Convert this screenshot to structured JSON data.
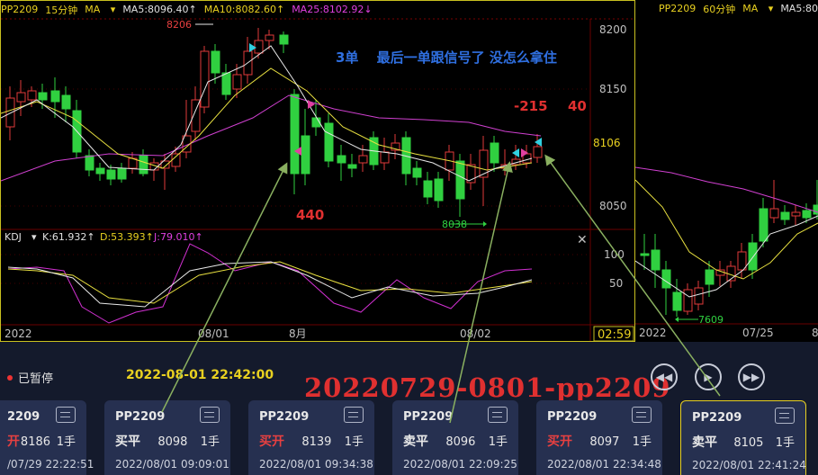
{
  "left": {
    "symbol": "PP2209",
    "period": "15分钟",
    "ma_label": "MA",
    "ma5": "MA5:8096.40↑",
    "ma10": "MA10:8082.60↑",
    "ma25": "MA25:8102.92↓",
    "annotation": "3单　 最后一单跟信号了  没怎么拿住",
    "pnl_a": "-215",
    "pnl_b": "40",
    "pnl_c": "440",
    "high_label": "8206",
    "low_label": "8038",
    "current_price": "8106",
    "y_ticks": [
      "8200",
      "8150",
      "8050"
    ],
    "kdj_label": "KDJ",
    "kdj_k": "K:61.932↑",
    "kdj_d": "D:53.393↑",
    "kdj_j": "J:79.010↑",
    "kdj_ticks": [
      "100",
      "50"
    ],
    "x_labels": [
      "2022",
      "08/01",
      "8月",
      "08/02"
    ],
    "countdown": "02:59"
  },
  "right": {
    "symbol": "PP2209",
    "period": "60分钟",
    "ma_label": "MA",
    "ma5": "MA5:80",
    "low_label": "7609",
    "x_labels": [
      "2022",
      "07/25",
      "8"
    ]
  },
  "bottom": {
    "status": "已暂停",
    "datetime": "2022-08-01 22:42:00",
    "overlay": "20220729-0801-pp2209",
    "cards": [
      {
        "symbol": "2209",
        "action": "开",
        "action_type": "open",
        "price": "8186",
        "qty": "1手",
        "time": "/07/29 22:22:51"
      },
      {
        "symbol": "PP2209",
        "action": "买平",
        "action_type": "close",
        "price": "8098",
        "qty": "1手",
        "time": "2022/08/01 09:09:01"
      },
      {
        "symbol": "PP2209",
        "action": "买开",
        "action_type": "open",
        "price": "8139",
        "qty": "1手",
        "time": "2022/08/01 09:34:38"
      },
      {
        "symbol": "PP2209",
        "action": "卖平",
        "action_type": "close",
        "price": "8096",
        "qty": "1手",
        "time": "2022/08/01 22:09:25"
      },
      {
        "symbol": "PP2209",
        "action": "买开",
        "action_type": "open",
        "price": "8097",
        "qty": "1手",
        "time": "2022/08/01 22:34:48"
      },
      {
        "symbol": "PP2209",
        "action": "卖平",
        "action_type": "close",
        "price": "8105",
        "qty": "1手",
        "time": "2022/08/01 22:41:24"
      }
    ]
  }
}
